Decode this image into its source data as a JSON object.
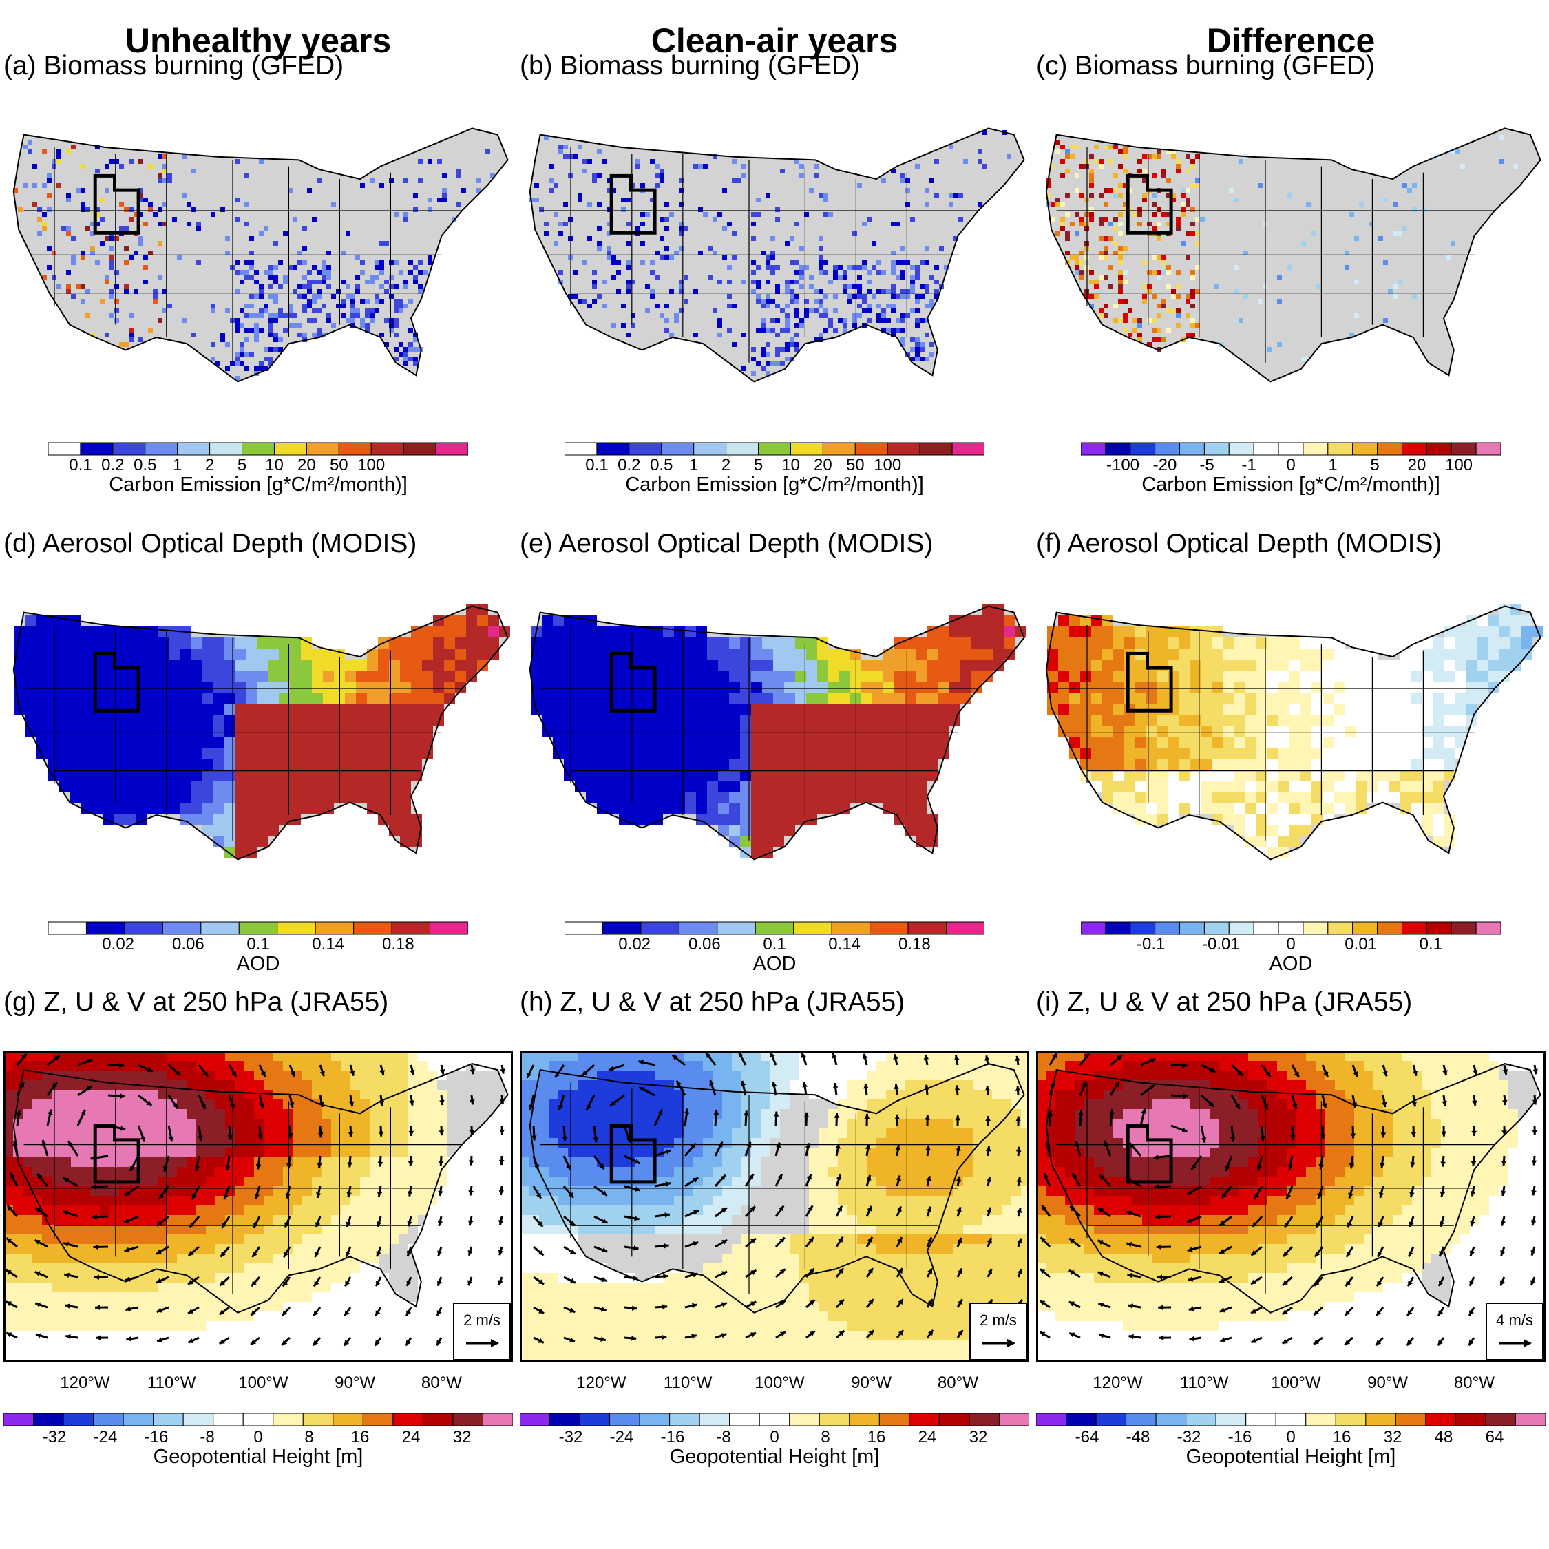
{
  "columns": [
    "Unhealthy years",
    "Clean-air years",
    "Difference"
  ],
  "panels": [
    {
      "title": "(a) Biomass burning (GFED)",
      "kind": "bb",
      "mode": "abs"
    },
    {
      "title": "(b) Biomass burning (GFED)",
      "kind": "bb",
      "mode": "abs2"
    },
    {
      "title": "(c) Biomass burning (GFED)",
      "kind": "bb",
      "mode": "diff"
    },
    {
      "title": "(d) Aerosol Optical Depth (MODIS)",
      "kind": "aod",
      "mode": "abs"
    },
    {
      "title": "(e) Aerosol Optical Depth (MODIS)",
      "kind": "aod",
      "mode": "abs2"
    },
    {
      "title": "(f) Aerosol Optical Depth (MODIS)",
      "kind": "aod",
      "mode": "diff"
    },
    {
      "title": "(g) Z, U & V at 250 hPa (JRA55)",
      "kind": "z",
      "mode": "high",
      "arrow": "2 m/s"
    },
    {
      "title": "(h) Z, U & V at 250 hPa (JRA55)",
      "kind": "z",
      "mode": "low",
      "arrow": "2 m/s"
    },
    {
      "title": "(i) Z, U & V at 250 hPa (JRA55)",
      "kind": "z",
      "mode": "high2",
      "arrow": "4 m/s"
    }
  ],
  "colorbars": {
    "bb": {
      "label": "Carbon Emission [g*C/m²/month)]",
      "ticks": [
        "0.1",
        "0.2",
        "0.5",
        "1",
        "2",
        "5",
        "10",
        "20",
        "50",
        "100"
      ],
      "colors": [
        "#ffffff",
        "#0000c8",
        "#3c46dc",
        "#6e8cf0",
        "#a0c8f0",
        "#c8e6f0",
        "#8cc83c",
        "#f0dc28",
        "#f0a028",
        "#e65a14",
        "#b42828",
        "#8c1e1e",
        "#e6288c"
      ]
    },
    "bb_diff": {
      "label": "Carbon Emission [g*C/m²/month)]",
      "ticks": [
        "-100",
        "-20",
        "-5",
        "-1",
        "0",
        "1",
        "5",
        "20",
        "100"
      ],
      "colors": [
        "#8c28f0",
        "#0000b4",
        "#1e3cdc",
        "#5a8cf0",
        "#78b4f0",
        "#a0d2f0",
        "#d2ebf5",
        "#ffffff",
        "#ffffff",
        "#fff5b4",
        "#f5dc64",
        "#f0b428",
        "#e67814",
        "#dc0000",
        "#b40000",
        "#8c1e28",
        "#e678b4"
      ]
    },
    "aod": {
      "label": "AOD",
      "ticks": [
        "0.02",
        "0.06",
        "0.1",
        "0.14",
        "0.18"
      ],
      "colors": [
        "#ffffff",
        "#0000c8",
        "#3c46dc",
        "#6e8cf0",
        "#a0c8f0",
        "#8cc83c",
        "#f0dc28",
        "#f0a028",
        "#e65a14",
        "#b42828",
        "#e6288c"
      ]
    },
    "aod_diff": {
      "label": "AOD",
      "ticks": [
        "-0.1",
        "-0.01",
        "0",
        "0.01",
        "0.1"
      ],
      "colors": [
        "#8c28f0",
        "#0000b4",
        "#1e3cdc",
        "#5a8cf0",
        "#78b4f0",
        "#a0d2f0",
        "#d2ebf5",
        "#ffffff",
        "#ffffff",
        "#fff5b4",
        "#f5dc64",
        "#f0b428",
        "#e67814",
        "#dc0000",
        "#b40000",
        "#8c1e28",
        "#e678b4"
      ]
    },
    "z": {
      "label": "Geopotential Height [m]",
      "ticks": [
        "-32",
        "-24",
        "-16",
        "-8",
        "0",
        "8",
        "16",
        "24",
        "32"
      ],
      "colors": [
        "#8c28f0",
        "#0000b4",
        "#1e3cdc",
        "#5a8cf0",
        "#78b4f0",
        "#a0d2f0",
        "#d2ebf5",
        "#ffffff",
        "#ffffff",
        "#fff5b4",
        "#f5dc64",
        "#f0b428",
        "#e67814",
        "#dc0000",
        "#b40000",
        "#8c1e28",
        "#e678b4"
      ]
    },
    "z_diff": {
      "label": "Geopotential Height [m]",
      "ticks": [
        "-64",
        "-48",
        "-32",
        "-16",
        "0",
        "16",
        "32",
        "48",
        "64"
      ],
      "colors": [
        "#8c28f0",
        "#0000b4",
        "#1e3cdc",
        "#5a8cf0",
        "#78b4f0",
        "#a0d2f0",
        "#d2ebf5",
        "#ffffff",
        "#ffffff",
        "#fff5b4",
        "#f5dc64",
        "#f0b428",
        "#e67814",
        "#dc0000",
        "#b40000",
        "#8c1e28",
        "#e678b4"
      ]
    }
  },
  "longitudes": [
    "120°W",
    "110°W",
    "100°W",
    "90°W",
    "80°W"
  ],
  "land_color": "#d3d3d3"
}
